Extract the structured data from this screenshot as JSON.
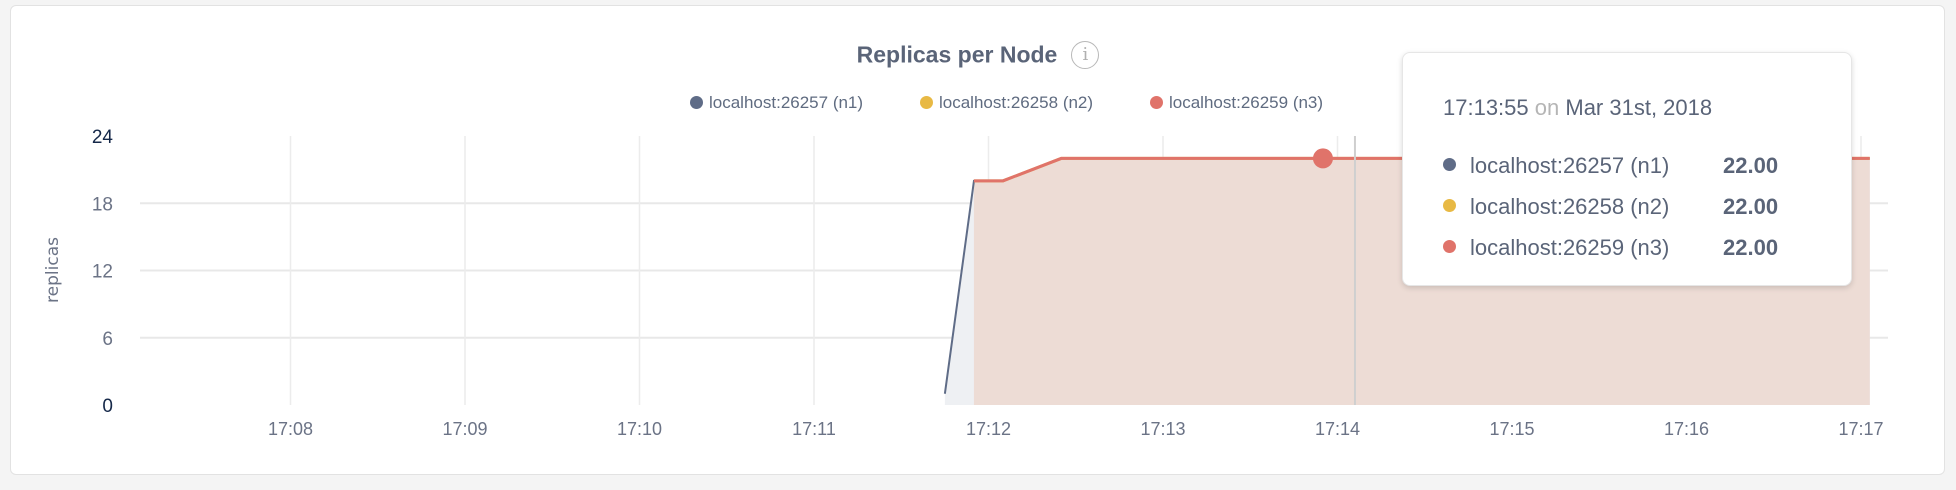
{
  "chart_data": {
    "type": "area",
    "title": "Replicas per Node",
    "ylabel": "replicas",
    "xlabel": "",
    "ylim": [
      0,
      24
    ],
    "yticks": [
      "0",
      "6",
      "12",
      "18",
      "24"
    ],
    "xticks": [
      "17:08",
      "17:09",
      "17:10",
      "17:11",
      "17:12",
      "17:13",
      "17:14",
      "17:15",
      "17:16",
      "17:17"
    ],
    "grid": true,
    "legend_position": "top-right",
    "series": [
      {
        "name": "localhost:26257 (n1)",
        "color": "#5f6c87",
        "points": [
          [
            "17:11:45",
            1
          ],
          [
            "17:11:55",
            20
          ],
          [
            "17:12:05",
            20
          ],
          [
            "17:12:25",
            22
          ],
          [
            "17:17:03",
            22
          ]
        ]
      },
      {
        "name": "localhost:26258 (n2)",
        "color": "#e8b944",
        "points": [
          [
            "17:11:55",
            20
          ],
          [
            "17:12:05",
            20
          ],
          [
            "17:12:25",
            22
          ],
          [
            "17:17:03",
            22
          ]
        ]
      },
      {
        "name": "localhost:26259 (n3)",
        "color": "#e0736a",
        "points": [
          [
            "17:11:55",
            20
          ],
          [
            "17:12:05",
            20
          ],
          [
            "17:12:25",
            22
          ],
          [
            "17:17:03",
            22
          ]
        ]
      }
    ],
    "tooltip": {
      "time": "17:13:55",
      "on": "on",
      "date": "Mar 31st, 2018",
      "rows": [
        {
          "name": "localhost:26257 (n1)",
          "value": "22.00",
          "color": "#5f6c87"
        },
        {
          "name": "localhost:26258 (n2)",
          "value": "22.00",
          "color": "#e8b944"
        },
        {
          "name": "localhost:26259 (n3)",
          "value": "22.00",
          "color": "#e0736a"
        }
      ]
    }
  },
  "info_icon": "info-icon"
}
